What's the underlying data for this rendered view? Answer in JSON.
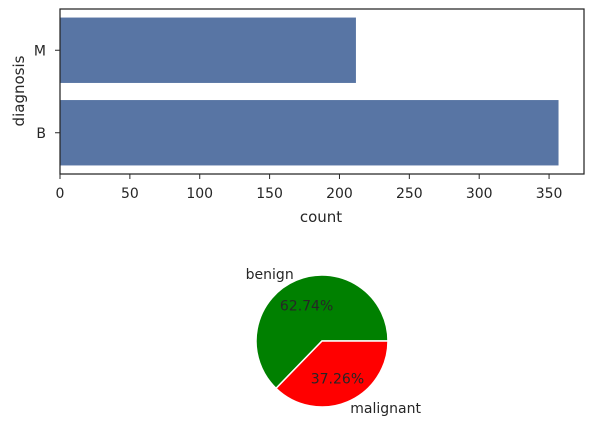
{
  "chart_data": [
    {
      "type": "bar",
      "orientation": "horizontal",
      "categories": [
        "M",
        "B"
      ],
      "values": [
        212,
        357
      ],
      "xlabel": "count",
      "ylabel": "diagnosis",
      "xlim": [
        0,
        375
      ],
      "xticks": [
        0,
        50,
        100,
        150,
        200,
        250,
        300,
        350
      ],
      "grid": false,
      "color": "#5875a4"
    },
    {
      "type": "pie",
      "labels": [
        "benign",
        "malignant"
      ],
      "values": [
        62.74,
        37.26
      ],
      "value_labels": [
        "62.74%",
        "37.26%"
      ],
      "colors": [
        "#008000",
        "#ff0000"
      ]
    }
  ]
}
